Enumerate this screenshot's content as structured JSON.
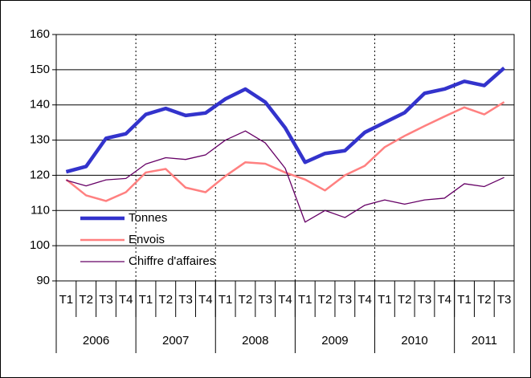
{
  "chart_data": {
    "type": "line",
    "categories": [
      "T1",
      "T2",
      "T3",
      "T4",
      "T1",
      "T2",
      "T3",
      "T4",
      "T1",
      "T2",
      "T3",
      "T4",
      "T1",
      "T2",
      "T3",
      "T4",
      "T1",
      "T2",
      "T3",
      "T4",
      "T1",
      "T2",
      "T3"
    ],
    "years": [
      "2006",
      "2007",
      "2008",
      "2009",
      "2010",
      "2011"
    ],
    "series": [
      {
        "name": "Tonnes",
        "color": "#3333cc",
        "values": [
          121,
          122.5,
          130.5,
          131.8,
          137.3,
          139,
          137,
          137.7,
          141.7,
          144.5,
          140.8,
          133.5,
          123.7,
          126.2,
          127,
          132.2,
          135,
          137.8,
          143.3,
          144.5,
          146.7,
          145.5,
          150.5
        ]
      },
      {
        "name": "Envois",
        "color": "#ff8080",
        "values": [
          118.8,
          114.3,
          112.7,
          115.2,
          120.8,
          121.8,
          116.5,
          115.2,
          119.8,
          123.7,
          123.3,
          120.8,
          118.8,
          115.7,
          120,
          122.7,
          128,
          131.2,
          134,
          136.7,
          139.3,
          137.3,
          140.8
        ]
      },
      {
        "name": "Chiffre d'affaires",
        "color": "#660066",
        "values": [
          118.6,
          117,
          118.7,
          119.1,
          123.2,
          125,
          124.5,
          125.8,
          130,
          132.6,
          129.2,
          122,
          106.7,
          110,
          108,
          111.5,
          113,
          111.8,
          113,
          113.5,
          117.6,
          116.8,
          119.4
        ]
      }
    ],
    "ylim": [
      90,
      160
    ],
    "yticks": [
      90,
      100,
      110,
      120,
      130,
      140,
      150,
      160
    ],
    "grid": true,
    "legend": "lower-left"
  }
}
